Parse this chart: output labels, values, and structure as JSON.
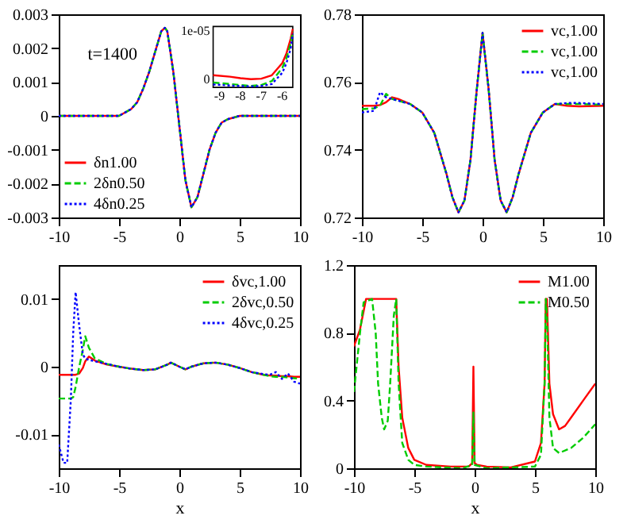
{
  "chart_data": [
    {
      "type": "line",
      "x": [
        -10,
        -6,
        -5,
        -4,
        -3.5,
        -3,
        -2.5,
        -2,
        -1.5,
        -1.2,
        -1,
        -0.5,
        0,
        0.5,
        1,
        1.5,
        2,
        2.5,
        3,
        3.5,
        4,
        5,
        6,
        10
      ],
      "xlim": [
        -10,
        10
      ],
      "xticks": [
        -10,
        -5,
        0,
        5,
        10
      ],
      "ylim": [
        -0.003,
        0.003
      ],
      "yticks": [
        -0.003,
        -0.002,
        -0.001,
        0,
        0.001,
        0.002,
        0.003
      ],
      "legend": "bottom left",
      "annotations": [
        "t=1400"
      ],
      "series": [
        {
          "name": "δn1.00",
          "color": "#ff0000",
          "line_style": "solid",
          "values": [
            0,
            0,
            0,
            0.0002,
            0.0004,
            0.0008,
            0.0013,
            0.0019,
            0.0025,
            0.0026,
            0.0025,
            0.0013,
            -0.0003,
            -0.0019,
            -0.0027,
            -0.0024,
            -0.0017,
            -0.001,
            -0.0005,
            -0.0002,
            -0.0001,
            0,
            0,
            0
          ]
        },
        {
          "name": "2δn0.50",
          "color": "#00cc00",
          "line_style": "dashed",
          "values": [
            0,
            0,
            0,
            0.0002,
            0.0004,
            0.0008,
            0.0013,
            0.0019,
            0.0025,
            0.0026,
            0.0025,
            0.0013,
            -0.0003,
            -0.0019,
            -0.0027,
            -0.0024,
            -0.0017,
            -0.001,
            -0.0005,
            -0.0002,
            -0.0001,
            0,
            0,
            0
          ]
        },
        {
          "name": "4δn0.25",
          "color": "#0000ff",
          "line_style": "dotted",
          "values": [
            0,
            0,
            0,
            0.0002,
            0.0004,
            0.0008,
            0.0013,
            0.0019,
            0.0025,
            0.0026,
            0.0025,
            0.0013,
            -0.0003,
            -0.0019,
            -0.0027,
            -0.0024,
            -0.0017,
            -0.001,
            -0.0005,
            -0.0002,
            -0.0001,
            0,
            0,
            0
          ]
        }
      ]
    },
    {
      "type": "line",
      "x": [
        -9.3,
        -8.5,
        -8,
        -7.5,
        -7,
        -6.5,
        -6,
        -5.8,
        -5.6,
        -5.5
      ],
      "xlim": [
        -9.3,
        -5.5
      ],
      "xticks": [
        -9,
        -8,
        -7,
        -6
      ],
      "ylim": [
        -1.5e-06,
        1.1e-05
      ],
      "yticks": [
        0,
        {
          "value": 1e-05,
          "label": "1e-05"
        }
      ],
      "series": [
        {
          "color": "#ff0000",
          "line_style": "solid",
          "values": [
            1e-06,
            7e-07,
            4e-07,
            2e-07,
            3e-07,
            1e-06,
            3.5e-06,
            5.5e-06,
            8.5e-06,
            1.05e-05
          ]
        },
        {
          "color": "#00cc00",
          "line_style": "dashed",
          "values": [
            -5e-07,
            -8e-07,
            -1e-06,
            -1.2e-06,
            -1e-06,
            -2e-07,
            2.5e-06,
            4.5e-06,
            7.5e-06,
            1e-05
          ]
        },
        {
          "color": "#0000ff",
          "line_style": "dotted",
          "values": [
            -9e-07,
            -1.1e-06,
            -1.2e-06,
            -1.3e-06,
            -1.2e-06,
            -8e-07,
            1.5e-06,
            3.5e-06,
            6.5e-06,
            9.5e-06
          ]
        }
      ]
    },
    {
      "type": "line",
      "x": [
        -10,
        -9,
        -8.5,
        -8,
        -7.5,
        -7,
        -6,
        -5,
        -4,
        -3,
        -2.5,
        -2,
        -1.5,
        -1,
        -0.5,
        0,
        0.5,
        1,
        1.5,
        2,
        2.5,
        3,
        4,
        5,
        6,
        7,
        8,
        10
      ],
      "xlim": [
        -10,
        10
      ],
      "xticks": [
        -10,
        -5,
        0,
        5,
        10
      ],
      "ylim": [
        0.72,
        0.78
      ],
      "yticks": [
        0.72,
        0.74,
        0.76,
        0.78
      ],
      "legend": "top right",
      "series": [
        {
          "name": "vc,1.00",
          "color": "#ff0000",
          "line_style": "solid",
          "values": [
            0.753,
            0.753,
            0.7532,
            0.754,
            0.7555,
            0.755,
            0.7535,
            0.751,
            0.745,
            0.733,
            0.726,
            0.7215,
            0.725,
            0.737,
            0.757,
            0.7745,
            0.758,
            0.737,
            0.725,
            0.7215,
            0.726,
            0.733,
            0.745,
            0.751,
            0.7535,
            0.753,
            0.7528,
            0.753
          ]
        },
        {
          "name": "vc,1.00",
          "color": "#00cc00",
          "line_style": "dashed",
          "values": [
            0.752,
            0.7522,
            0.753,
            0.7565,
            0.755,
            0.7545,
            0.7535,
            0.751,
            0.745,
            0.733,
            0.726,
            0.7215,
            0.725,
            0.737,
            0.757,
            0.7745,
            0.758,
            0.737,
            0.725,
            0.7215,
            0.726,
            0.733,
            0.745,
            0.751,
            0.7535,
            0.7535,
            0.7535,
            0.7533
          ]
        },
        {
          "name": "vc,1.00",
          "color": "#0000ff",
          "line_style": "dotted",
          "values": [
            0.751,
            0.7515,
            0.757,
            0.7555,
            0.755,
            0.7545,
            0.7535,
            0.751,
            0.745,
            0.733,
            0.726,
            0.7215,
            0.725,
            0.737,
            0.757,
            0.7745,
            0.758,
            0.737,
            0.725,
            0.7215,
            0.726,
            0.733,
            0.745,
            0.751,
            0.7535,
            0.7538,
            0.7538,
            0.7535
          ]
        }
      ]
    },
    {
      "type": "line",
      "x": [
        -10,
        -9.6,
        -9.3,
        -9,
        -8.8,
        -8.6,
        -8.3,
        -8,
        -7.8,
        -7.5,
        -7,
        -6,
        -5,
        -4,
        -3,
        -2,
        -1,
        -0.7,
        0,
        0.5,
        1,
        2,
        3,
        4,
        5,
        6,
        7,
        7.5,
        8,
        8.5,
        9,
        9.5,
        10
      ],
      "xlim": [
        -10,
        10
      ],
      "xticks": [
        -10,
        -5,
        0,
        5,
        10
      ],
      "ylim": [
        -0.015,
        0.015
      ],
      "yticks": [
        -0.01,
        0,
        0.01
      ],
      "xlabel": "x",
      "legend": "top right",
      "series": [
        {
          "name": "δvc,1.00",
          "color": "#ff0000",
          "line_style": "solid",
          "values": [
            -0.0012,
            -0.0012,
            -0.0012,
            -0.0012,
            -0.0012,
            -0.0012,
            -0.001,
            -0.0002,
            0.0008,
            0.0015,
            0.0009,
            0.0003,
            0,
            -0.0003,
            -0.0005,
            -0.0004,
            0.0003,
            0.0006,
            0,
            -0.0004,
            0,
            0.0005,
            0.0006,
            0.0003,
            -0.0002,
            -0.0008,
            -0.0012,
            -0.0013,
            -0.0013,
            -0.0014,
            -0.0014,
            -0.0015,
            -0.0015
          ]
        },
        {
          "name": "2δvc,0.50",
          "color": "#00cc00",
          "line_style": "dashed",
          "values": [
            -0.0047,
            -0.0047,
            -0.0047,
            -0.0047,
            -0.0045,
            -0.003,
            0,
            0.0025,
            0.0045,
            0.0028,
            0.0012,
            0.0004,
            0,
            -0.0003,
            -0.0005,
            -0.0004,
            0.0003,
            0.0006,
            0,
            -0.0004,
            0,
            0.0005,
            0.0006,
            0.0003,
            -0.0002,
            -0.0008,
            -0.0012,
            -0.0014,
            -0.0015,
            -0.0015,
            -0.0016,
            -0.0017,
            -0.0018
          ]
        },
        {
          "name": "4δvc,0.25",
          "color": "#0000ff",
          "line_style": "dotted",
          "values": [
            -0.0115,
            -0.0142,
            -0.0142,
            -0.005,
            0.005,
            0.011,
            0.006,
            0.0018,
            0.0012,
            0.001,
            0.0008,
            0.0004,
            0,
            -0.0003,
            -0.0005,
            -0.0004,
            0.0003,
            0.0006,
            0,
            -0.0004,
            0,
            0.0005,
            0.0006,
            0.0003,
            -0.0002,
            -0.0008,
            -0.0011,
            -0.0012,
            -0.0008,
            -0.0018,
            -0.001,
            -0.0022,
            -0.0025
          ]
        }
      ]
    },
    {
      "type": "line",
      "xlim": [
        -10,
        10
      ],
      "xticks": [
        -10,
        -5,
        0,
        5,
        10
      ],
      "ylim": [
        0,
        1.2
      ],
      "yticks": [
        0,
        0.4,
        0.8,
        1.2
      ],
      "xlabel": "x",
      "legend": "top right",
      "series": [
        {
          "name": "M1.00",
          "color": "#ff0000",
          "line_style": "solid",
          "x": [
            -10,
            -9.5,
            -9,
            -6.5,
            -6.3,
            -6,
            -5.5,
            -5,
            -4,
            -2,
            -0.5,
            -0.2,
            -0.1,
            0,
            0.2,
            1,
            3,
            5,
            5.5,
            5.8,
            5.9,
            6.0,
            6.2,
            6.5,
            7,
            7.5,
            8,
            9,
            10
          ],
          "values": [
            0.72,
            0.82,
            1.0,
            1.0,
            0.6,
            0.3,
            0.12,
            0.05,
            0.02,
            0.01,
            0.01,
            0.03,
            0.6,
            0.03,
            0.02,
            0.01,
            0.005,
            0.04,
            0.15,
            0.5,
            1.0,
            1.0,
            0.5,
            0.32,
            0.23,
            0.25,
            0.3,
            0.4,
            0.5
          ]
        },
        {
          "name": "M0.50",
          "color": "#00cc00",
          "line_style": "dashed",
          "x": [
            -10,
            -9.5,
            -9.2,
            -8.5,
            -8.2,
            -8,
            -7.7,
            -7.5,
            -7.2,
            -7,
            -6.7,
            -6.5,
            -6.3,
            -6,
            -5.5,
            -5,
            -4,
            -1,
            -0.2,
            -0.1,
            0,
            1,
            5,
            5.5,
            5.8,
            5.9,
            6.0,
            6.2,
            6.5,
            7,
            8,
            9,
            10
          ],
          "values": [
            0.45,
            0.8,
            0.98,
            1.0,
            0.8,
            0.5,
            0.3,
            0.23,
            0.28,
            0.5,
            0.9,
            1.0,
            0.5,
            0.15,
            0.05,
            0.02,
            0.01,
            0,
            0.02,
            0.33,
            0.02,
            0,
            0.01,
            0.08,
            0.5,
            1.0,
            0.9,
            0.3,
            0.12,
            0.09,
            0.12,
            0.18,
            0.26
          ]
        }
      ]
    }
  ]
}
